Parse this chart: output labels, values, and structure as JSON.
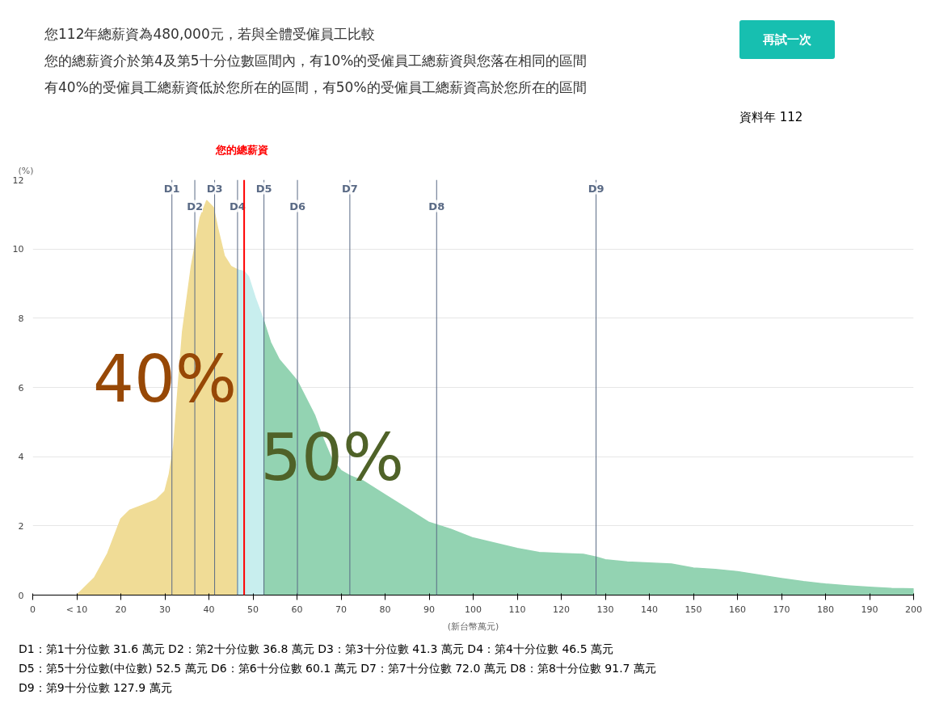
{
  "chart_data": {
    "type": "area",
    "title": "您112年總薪資為480,000元，若與全體受僱員工比較",
    "subtitle": "您的總薪資介於第4及第5十分位數區間內，有10%的受僱員工總薪資與您落在相同的區間",
    "xlabel": "(新台幣萬元)",
    "ylabel": "(%)",
    "series": [
      {
        "color": "#f0dc96",
        "x": [
          10,
          14,
          17,
          20,
          22,
          25,
          28,
          30,
          31,
          32,
          33,
          34,
          36,
          38,
          39.5,
          41,
          42,
          43.5,
          45,
          46.5
        ],
        "values": [
          0,
          0.5,
          1.2,
          2.2,
          2.45,
          2.6,
          2.75,
          3.0,
          3.5,
          4.3,
          6.0,
          7.6,
          9.5,
          10.9,
          11.4,
          11.2,
          10.6,
          9.8,
          9.5,
          9.4
        ]
      },
      {
        "color": "#c8eeee",
        "x": [
          46.5,
          48,
          49,
          50.5,
          52.5
        ],
        "values": [
          9.4,
          9.35,
          9.2,
          8.6,
          7.9
        ]
      },
      {
        "color": "#93d3b2",
        "x": [
          52.5,
          54,
          56,
          58,
          60,
          62,
          64,
          66,
          68,
          70,
          72,
          75,
          80,
          85,
          90,
          95,
          100,
          105,
          110,
          115,
          120,
          125,
          128,
          130,
          135,
          140,
          145,
          150,
          155,
          160,
          165,
          170,
          175,
          180,
          185,
          190,
          195,
          200
        ],
        "values": [
          7.9,
          7.3,
          6.8,
          6.5,
          6.2,
          5.7,
          5.2,
          4.5,
          3.9,
          3.6,
          3.45,
          3.3,
          2.9,
          2.5,
          2.1,
          1.9,
          1.65,
          1.5,
          1.35,
          1.23,
          1.2,
          1.18,
          1.1,
          1.02,
          0.96,
          0.93,
          0.9,
          0.78,
          0.74,
          0.68,
          0.58,
          0.48,
          0.39,
          0.32,
          0.27,
          0.23,
          0.19,
          0.18
        ]
      }
    ],
    "xlim": [
      0,
      200
    ],
    "ylim": [
      0,
      12
    ],
    "xticks": [
      0,
      {
        "value": 10,
        "label": "< 10"
      },
      20,
      30,
      40,
      50,
      60,
      70,
      80,
      90,
      100,
      110,
      120,
      130,
      140,
      150,
      160,
      170,
      180,
      190,
      200
    ],
    "yticks": [
      0,
      2,
      4,
      6,
      8,
      10,
      12
    ],
    "grid": "y",
    "ref_lines": [
      {
        "axis": "x",
        "value": 31.6,
        "label": "D1",
        "color": "#5a6a85"
      },
      {
        "axis": "x",
        "value": 36.8,
        "label": "D2",
        "color": "#5a6a85"
      },
      {
        "axis": "x",
        "value": 41.3,
        "label": "D3",
        "color": "#5a6a85"
      },
      {
        "axis": "x",
        "value": 46.5,
        "label": "D4",
        "color": "#5a6a85"
      },
      {
        "axis": "x",
        "value": 52.5,
        "label": "D5",
        "color": "#5a6a85"
      },
      {
        "axis": "x",
        "value": 60.1,
        "label": "D6",
        "color": "#5a6a85"
      },
      {
        "axis": "x",
        "value": 72.0,
        "label": "D7",
        "color": "#5a6a85"
      },
      {
        "axis": "x",
        "value": 91.7,
        "label": "D8",
        "color": "#5a6a85"
      },
      {
        "axis": "x",
        "value": 127.9,
        "label": "D9",
        "color": "#5a6a85"
      },
      {
        "axis": "x",
        "value": 48,
        "label": "您的總薪資",
        "color": "#ff0000"
      }
    ],
    "annotations": [
      "有40%的受僱員工總薪資低於您所在的區間，有50%的受僱員工總薪資高於您所在的區間",
      "40%",
      "50%",
      "再試一次",
      "資料年 112",
      "D1：第1十分位數 31.6 萬元  D2：第2十分位數 36.8 萬元  D3：第3十分位數 41.3 萬元  D4：第4十分位數 46.5 萬元",
      "D5：第5十分位數(中位數) 52.5 萬元  D6：第6十分位數 60.1 萬元  D7：第7十分位數 72.0 萬元  D8：第8十分位數 91.7 萬元",
      "D9：第9十分位數 127.9 萬元"
    ]
  }
}
